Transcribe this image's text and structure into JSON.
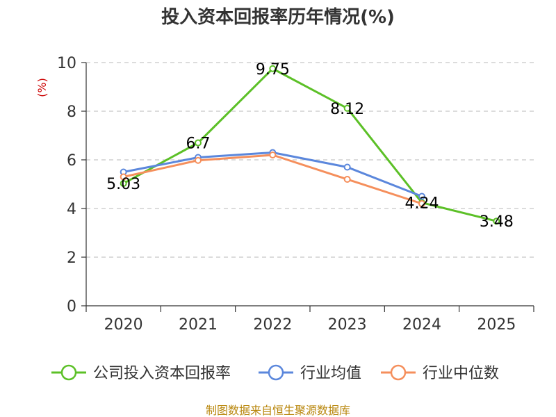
{
  "chart_data": {
    "type": "line",
    "title": "投入资本回报率历年情况(%)",
    "ylabel": "(%)",
    "xlabel": "",
    "ylim": [
      0,
      10
    ],
    "yticks": [
      0,
      2,
      4,
      6,
      8,
      10
    ],
    "grid": true,
    "legend_position": "bottom",
    "categories": [
      "2020",
      "2021",
      "2022",
      "2023",
      "2024",
      "2025"
    ],
    "series": [
      {
        "name": "公司投入资本回报率",
        "color": "#5cc027",
        "values": [
          5.03,
          6.7,
          9.75,
          8.12,
          4.24,
          3.48
        ],
        "labels": [
          "5.03",
          "6.7",
          "9.75",
          "8.12",
          "4.24",
          "3.48"
        ]
      },
      {
        "name": "行业均值",
        "color": "#5b87dc",
        "values": [
          5.5,
          6.1,
          6.3,
          5.7,
          4.5,
          null
        ]
      },
      {
        "name": "行业中位数",
        "color": "#f58f5c",
        "values": [
          5.3,
          5.98,
          6.2,
          5.2,
          4.2,
          null
        ]
      }
    ],
    "source": "制图数据来自恒生聚源数据库"
  }
}
